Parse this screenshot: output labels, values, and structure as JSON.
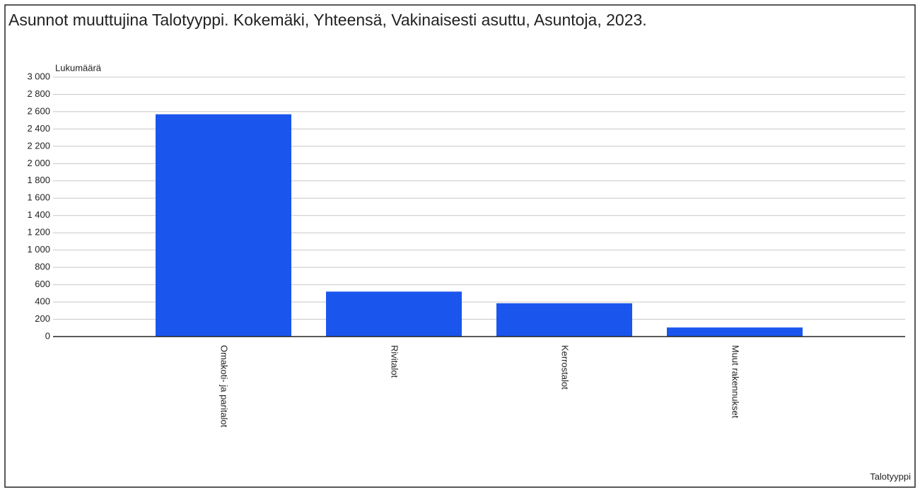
{
  "chart_data": {
    "type": "bar",
    "title": "Asunnot muuttujina Talotyyppi. Kokemäki, Yhteensä, Vakinaisesti asuttu, Asuntoja, 2023.",
    "y_label": "Lukumäärä",
    "x_label": "Talotyyppi",
    "categories": [
      "Omakoti- ja paritalot",
      "Rivitalot",
      "Kerrostalot",
      "Muut rakennukset"
    ],
    "values": [
      2570,
      520,
      385,
      105
    ],
    "color": "#1a56ee",
    "ylim": [
      0,
      3000
    ],
    "yticks": [
      0,
      200,
      400,
      600,
      800,
      {
        "value": 1000,
        "label": "1 000"
      },
      {
        "value": 1200,
        "label": "1 200"
      },
      {
        "value": 1400,
        "label": "1 400"
      },
      {
        "value": 1600,
        "label": "1 600"
      },
      {
        "value": 1800,
        "label": "1 800"
      },
      {
        "value": 2000,
        "label": "2 000"
      },
      {
        "value": 2200,
        "label": "2 200"
      },
      {
        "value": 2400,
        "label": "2 400"
      },
      {
        "value": 2600,
        "label": "2 600"
      },
      {
        "value": 2800,
        "label": "2 800"
      },
      {
        "value": 3000,
        "label": "3 000"
      }
    ],
    "grid": true
  }
}
